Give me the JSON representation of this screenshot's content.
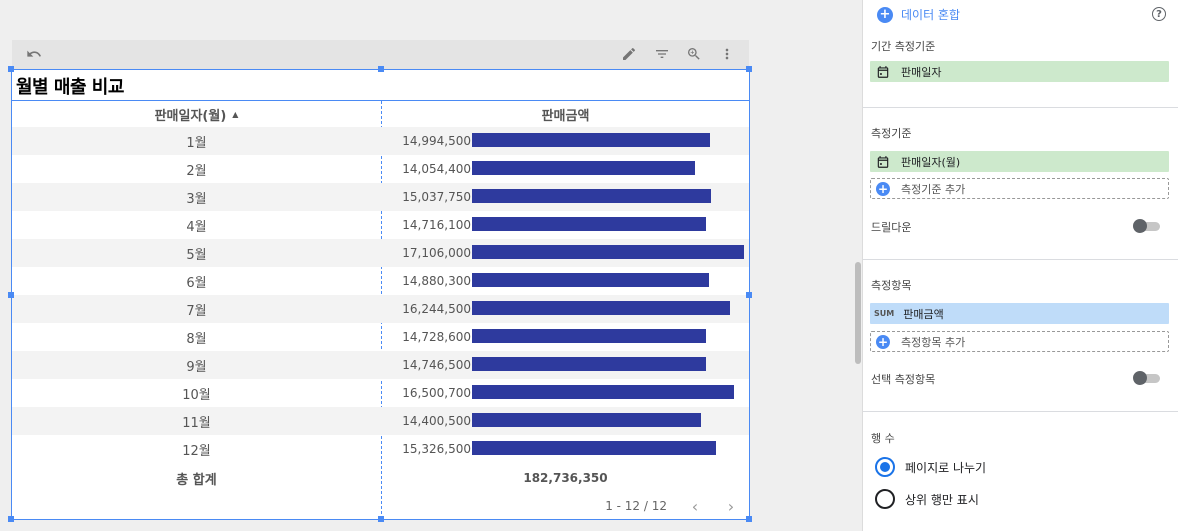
{
  "toolbar": {
    "undo_icon": "undo-icon",
    "edit_icon": "pencil-icon",
    "filter_icon": "filter-icon",
    "zoom_icon": "zoom-icon",
    "more_icon": "more-vert-icon"
  },
  "chart": {
    "title": "월별 매출 비교",
    "col_month": "판매일자(월)",
    "sort_indicator": "▲",
    "col_amount": "판매금액",
    "total_label": "총 합계",
    "total_value": "182,736,350",
    "pager_text": "1 - 12 / 12",
    "prev": "‹",
    "next": "›",
    "bar_color": "#2e3a9e"
  },
  "chart_data": {
    "type": "table",
    "categories": [
      "1월",
      "2월",
      "3월",
      "4월",
      "5월",
      "6월",
      "7월",
      "8월",
      "9월",
      "10월",
      "11월",
      "12월"
    ],
    "values": [
      14994500,
      14054400,
      15037750,
      14716100,
      17106000,
      14880300,
      16244500,
      14728600,
      14746500,
      16500700,
      14400500,
      15326500
    ],
    "labels": [
      "14,994,500",
      "14,054,400",
      "15,037,750",
      "14,716,100",
      "17,106,000",
      "14,880,300",
      "16,244,500",
      "14,728,600",
      "14,746,500",
      "16,500,700",
      "14,400,500",
      "15,326,500"
    ]
  },
  "panel": {
    "blend_label": "데이터 혼합",
    "help": "?",
    "date_range_dimension_label": "기간 측정기준",
    "date_range_dimension_value": "판매일자",
    "dimension_label": "측정기준",
    "dimension_value": "판매일자(월)",
    "add_dimension": "측정기준 추가",
    "drilldown_label": "드릴다운",
    "metric_label": "측정항목",
    "metric_agg": "SUM",
    "metric_value": "판매금액",
    "add_metric": "측정항목 추가",
    "optional_metrics_label": "선택 측정항목",
    "rows_label": "행 수",
    "paginate_label": "페이지로 나누기",
    "top_rows_label": "상위 행만 표시"
  }
}
